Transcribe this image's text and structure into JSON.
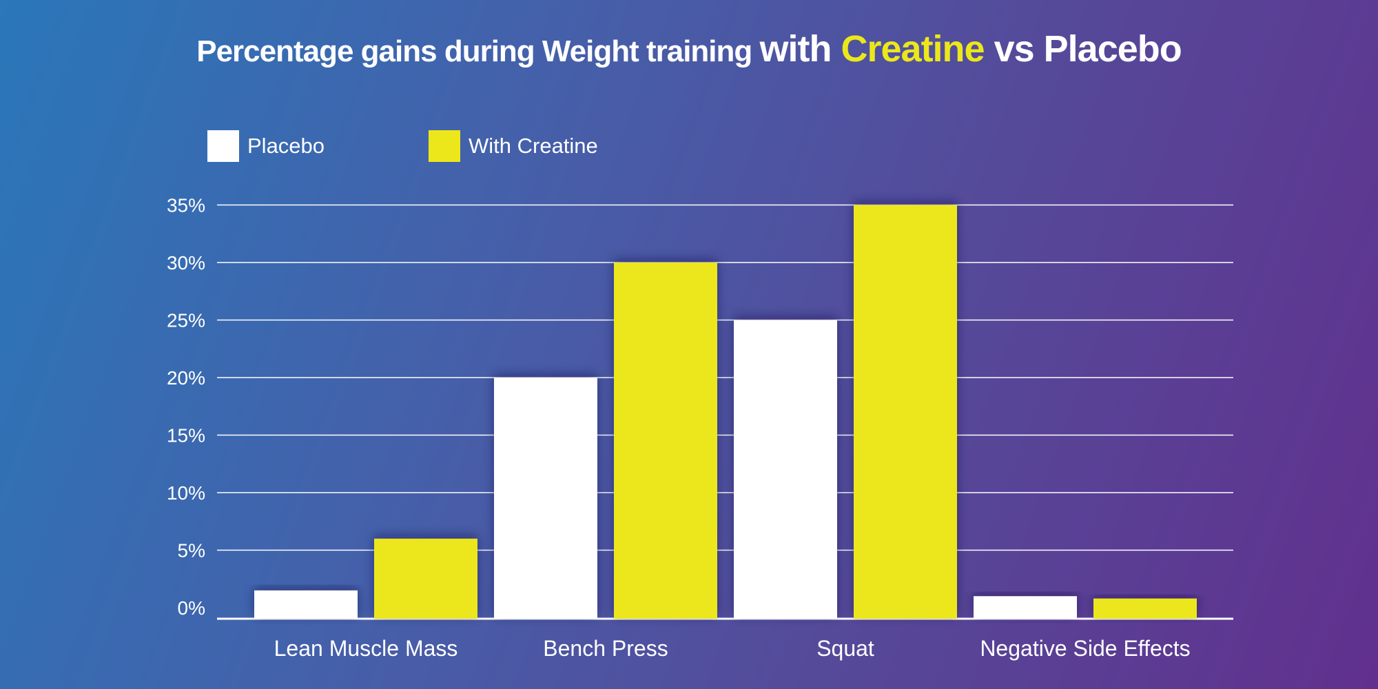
{
  "title": {
    "part1": "Percentage gains during Weight training ",
    "part2": "with ",
    "highlight": "Creatine",
    "part3": " vs Placebo"
  },
  "colors": {
    "placebo": "#ffffff",
    "creatine": "#ece71a",
    "grid": "#ffffff"
  },
  "chart_data": {
    "type": "bar",
    "title": "Percentage gains during Weight training with Creatine vs Placebo",
    "xlabel": "",
    "ylabel": "",
    "categories": [
      "Lean Muscle Mass",
      "Bench Press",
      "Squat",
      "Negative Side Effects"
    ],
    "series": [
      {
        "name": "Placebo",
        "values": [
          1.5,
          20,
          25,
          1
        ]
      },
      {
        "name": "With Creatine",
        "values": [
          6,
          30,
          35,
          0.8
        ]
      }
    ],
    "yticks": [
      "0%",
      "5%",
      "10%",
      "15%",
      "20%",
      "25%",
      "30%",
      "35%"
    ],
    "ylim": [
      0,
      35
    ],
    "grid": true,
    "legend": "top-left"
  }
}
